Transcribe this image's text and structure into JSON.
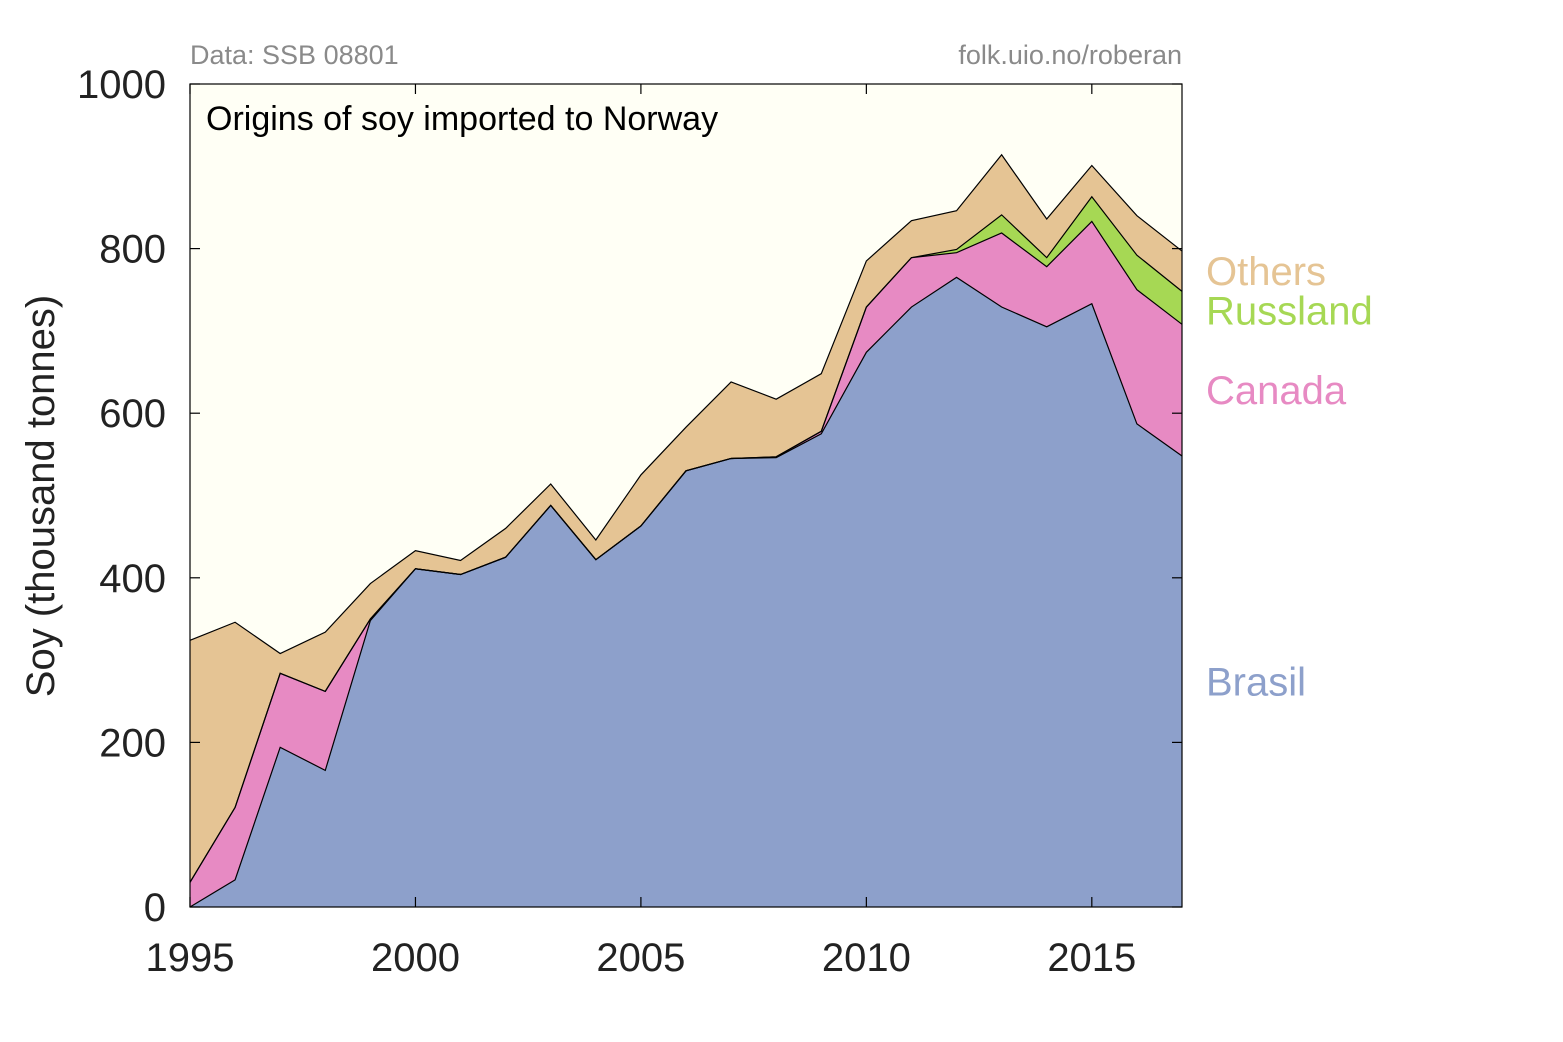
{
  "chart_data": {
    "type": "area",
    "stacked": true,
    "title": "Origins of soy imported to Norway",
    "source_left": "Data: SSB 08801",
    "source_right": "folk.uio.no/roberan",
    "xlabel": "",
    "ylabel": "Soy (thousand tonnes)",
    "xlim": [
      1995,
      2017
    ],
    "ylim": [
      0,
      1000
    ],
    "xticks": [
      1995,
      2000,
      2005,
      2010,
      2015
    ],
    "yticks": [
      0,
      200,
      400,
      600,
      800,
      1000
    ],
    "grid": false,
    "legend": "right, labels beside series",
    "background_color": "#fffff5",
    "x": [
      1995,
      1996,
      1997,
      1998,
      1999,
      2000,
      2001,
      2002,
      2003,
      2004,
      2005,
      2006,
      2007,
      2008,
      2009,
      2010,
      2011,
      2012,
      2013,
      2014,
      2015,
      2016,
      2017
    ],
    "series": [
      {
        "name": "Brasil",
        "color": "#8da0cb",
        "values": [
          0,
          33,
          194,
          166,
          348,
          411,
          404,
          425,
          488,
          422,
          463,
          530,
          545,
          546,
          575,
          674,
          729,
          765,
          729,
          705,
          733,
          587,
          548
        ]
      },
      {
        "name": "Canada",
        "color": "#e78ac3",
        "values": [
          30,
          88,
          90,
          96,
          2,
          0,
          0,
          0,
          0,
          0,
          0,
          0,
          0,
          1,
          3,
          55,
          60,
          30,
          90,
          73,
          100,
          163,
          160
        ]
      },
      {
        "name": "Russland",
        "color": "#a6d854",
        "values": [
          0,
          0,
          0,
          0,
          0,
          0,
          0,
          0,
          0,
          0,
          0,
          0,
          0,
          0,
          0,
          0,
          0,
          4,
          22,
          11,
          30,
          42,
          40
        ]
      },
      {
        "name": "Others",
        "color": "#e5c494",
        "values": [
          294,
          225,
          24,
          72,
          43,
          22,
          17,
          35,
          26,
          24,
          62,
          53,
          93,
          70,
          70,
          56,
          45,
          47,
          73,
          47,
          38,
          48,
          49
        ]
      }
    ]
  }
}
